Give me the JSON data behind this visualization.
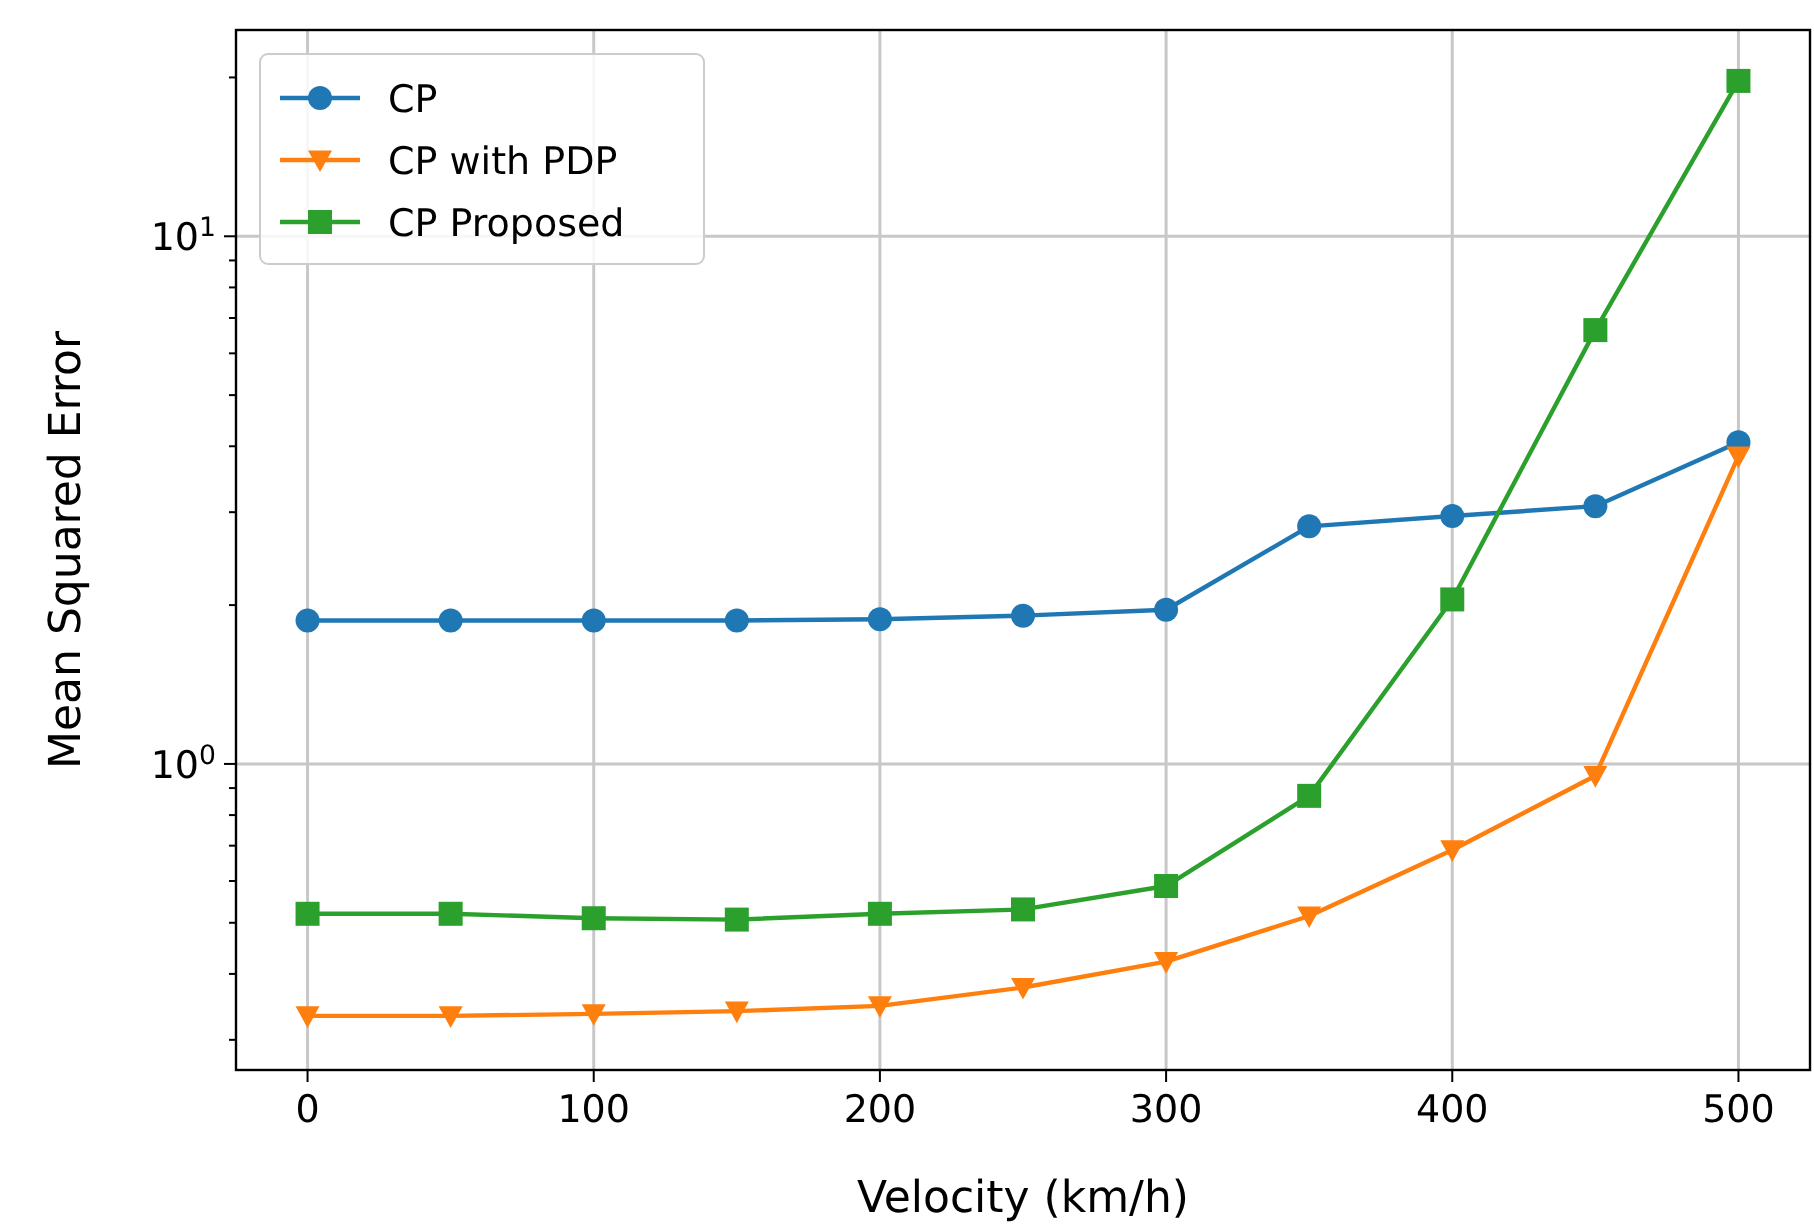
{
  "chart_data": {
    "type": "line",
    "xlabel": "Velocity (km/h)",
    "ylabel": "Mean Squared Error",
    "x": [
      0,
      50,
      100,
      150,
      200,
      250,
      300,
      350,
      400,
      450,
      500
    ],
    "series": [
      {
        "name": "CP",
        "color": "#1f77b4",
        "marker": "circle",
        "values": [
          1.87,
          1.87,
          1.87,
          1.87,
          1.88,
          1.91,
          1.96,
          2.82,
          2.95,
          3.08,
          4.07
        ]
      },
      {
        "name": "CP with PDP",
        "color": "#ff7f0e",
        "marker": "triangle",
        "values": [
          0.333,
          0.333,
          0.336,
          0.34,
          0.348,
          0.377,
          0.422,
          0.515,
          0.687,
          0.95,
          3.83
        ]
      },
      {
        "name": "CP Proposed",
        "color": "#2ca02c",
        "marker": "square",
        "values": [
          0.52,
          0.52,
          0.51,
          0.507,
          0.52,
          0.53,
          0.587,
          0.87,
          2.05,
          6.64,
          19.7
        ]
      }
    ],
    "log": "y",
    "xlim": [
      -25,
      525
    ],
    "xticks": [
      0,
      100,
      200,
      300,
      400,
      500
    ],
    "ylim": [
      0.263,
      24.6
    ],
    "yticks": [
      {
        "value": 0.3,
        "label": null
      },
      {
        "value": 0.4,
        "label": null
      },
      {
        "value": 0.5,
        "label": null
      },
      {
        "value": 0.6,
        "label": null
      },
      {
        "value": 0.7,
        "label": null
      },
      {
        "value": 0.8,
        "label": null
      },
      {
        "value": 0.9,
        "label": null
      },
      {
        "value": 1,
        "label": "10$^{0}$"
      },
      {
        "value": 2,
        "label": null
      },
      {
        "value": 3,
        "label": null
      },
      {
        "value": 4,
        "label": null
      },
      {
        "value": 5,
        "label": null
      },
      {
        "value": 6,
        "label": null
      },
      {
        "value": 7,
        "label": null
      },
      {
        "value": 8,
        "label": null
      },
      {
        "value": 9,
        "label": null
      },
      {
        "value": 10,
        "label": "10$^{1}$"
      },
      {
        "value": 20,
        "label": null
      }
    ],
    "grid": true,
    "legend": "top left",
    "line_style": "solid"
  }
}
